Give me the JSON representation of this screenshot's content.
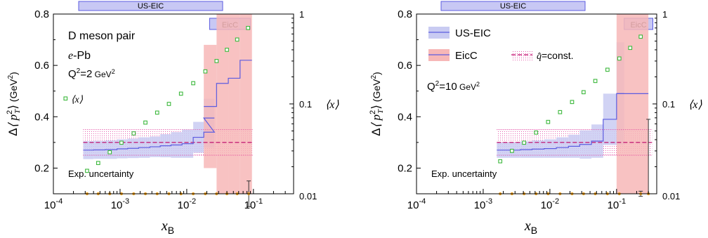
{
  "figure": {
    "xlabel_main": "x",
    "xlabel_sub": "B",
    "ylabel_pre": "Δ",
    "ylabel_var": "⟨ p",
    "ylabel_sup": "2",
    "ylabel_sub": "T",
    "ylabel_post": "⟩",
    "ylabel_unit": "(GeV",
    "ylabel_unit_sup": "2",
    "ylabel_unit_close": ")",
    "right_axis_label": "⟨x⟩"
  },
  "chart_data": [
    {
      "type": "line",
      "panel": "left",
      "x_scale": "log",
      "xlim": [
        0.0001,
        0.4
      ],
      "ylim": [
        0.1,
        0.8
      ],
      "right_axis": {
        "scale": "log",
        "range": [
          0.01,
          1
        ],
        "ticks": [
          "0.01",
          "0.1",
          "1"
        ]
      },
      "y_ticks": [
        "0.2",
        "0.4",
        "0.6",
        "0.8"
      ],
      "x_ticks": [
        {
          "base": "10",
          "exp": "-4"
        },
        {
          "base": "10",
          "exp": "-3"
        },
        {
          "base": "10",
          "exp": "-2"
        },
        {
          "base": "10",
          "exp": "-1"
        }
      ],
      "top_bars": [
        {
          "label": "US-EIC",
          "xrange": [
            0.0001,
            0.03
          ]
        },
        {
          "label": "EicC",
          "xrange": [
            0.022,
            0.09
          ]
        }
      ],
      "annotations": {
        "line1": "D meson pair",
        "line2_var": "e",
        "line2_rest": "-Pb",
        "q2_main": "Q",
        "q2_sup": "2",
        "q2_val": "=2",
        "q2_unit": "GeV",
        "q2_unit_sup": "2",
        "x_legend": "⟨x⟩",
        "exp_uncertainty": "Exp. uncertainty"
      },
      "qhat_const": {
        "value": 0.3,
        "band": [
          0.25,
          0.35
        ],
        "xrange": [
          0.00028,
          0.1
        ]
      },
      "us_eic_edges": [
        0.00028,
        0.0004,
        0.0006,
        0.0009,
        0.0013,
        0.0019,
        0.0028,
        0.004,
        0.0058,
        0.0085,
        0.0125,
        0.018,
        0.026
      ],
      "us_eic_values": [
        0.27,
        0.271,
        0.272,
        0.275,
        0.277,
        0.28,
        0.283,
        0.287,
        0.29,
        0.295,
        0.32,
        0.34
      ],
      "us_eic_err": [
        0.035,
        0.035,
        0.036,
        0.037,
        0.038,
        0.04,
        0.04,
        0.045,
        0.05,
        0.055,
        0.06,
        0.06
      ],
      "us_eic_last": {
        "edges": [
          0.018,
          0.026
        ],
        "value": 0.395,
        "err": 0.075
      },
      "eicc_edges": [
        0.018,
        0.028,
        0.042,
        0.063,
        0.095
      ],
      "eicc_values": [
        0.44,
        0.53,
        0.55,
        0.62
      ],
      "eicc_err": [
        0.24,
        0.5,
        0.55,
        0.55
      ],
      "x_points": [
        {
          "x": 0.00032,
          "xavg": 0.018
        },
        {
          "x": 0.00047,
          "xavg": 0.022
        },
        {
          "x": 0.0007,
          "xavg": 0.029
        },
        {
          "x": 0.00105,
          "xavg": 0.037
        },
        {
          "x": 0.0016,
          "xavg": 0.047
        },
        {
          "x": 0.0024,
          "xavg": 0.062
        },
        {
          "x": 0.0036,
          "xavg": 0.08
        },
        {
          "x": 0.0054,
          "xavg": 0.1
        },
        {
          "x": 0.0082,
          "xavg": 0.13
        },
        {
          "x": 0.0125,
          "xavg": 0.17
        },
        {
          "x": 0.019,
          "xavg": 0.23
        },
        {
          "x": 0.028,
          "xavg": 0.3
        },
        {
          "x": 0.04,
          "xavg": 0.4
        },
        {
          "x": 0.057,
          "xavg": 0.52
        },
        {
          "x": 0.083,
          "xavg": 0.7
        }
      ],
      "exp_points": [
        0.00032,
        0.00047,
        0.0007,
        0.00105,
        0.0016,
        0.0024,
        0.0036,
        0.0054,
        0.0082,
        0.0125,
        0.019,
        0.028,
        0.04,
        0.057
      ],
      "exp_y": 0.1,
      "exp_bar": {
        "x": 0.085,
        "y": 0.1,
        "low": 0.05,
        "high": 0.15
      }
    },
    {
      "type": "line",
      "panel": "right",
      "x_scale": "log",
      "xlim": [
        0.0001,
        0.4
      ],
      "ylim": [
        0.1,
        0.8
      ],
      "right_axis": {
        "scale": "log",
        "range": [
          0.01,
          1
        ],
        "ticks": [
          "0.01",
          "0.1",
          "1"
        ]
      },
      "y_ticks": [
        "0.2",
        "0.4",
        "0.6",
        "0.8"
      ],
      "x_ticks": [
        {
          "base": "10",
          "exp": "-4"
        },
        {
          "base": "10",
          "exp": "-3"
        },
        {
          "base": "10",
          "exp": "-2"
        },
        {
          "base": "10",
          "exp": "-1"
        }
      ],
      "top_bars": [
        {
          "label": "US-EIC",
          "xrange": [
            0.0001,
            0.35
          ]
        },
        {
          "label": "EicC",
          "xrange": [
            0.13,
            0.35
          ]
        }
      ],
      "annotations": {
        "q2_main": "Q",
        "q2_sup": "2",
        "q2_val": "=10",
        "q2_unit": "GeV",
        "q2_unit_sup": "2",
        "x_legend": "⟨x⟩",
        "exp_uncertainty": "Exp. uncertainty"
      },
      "legend": {
        "us_eic": "US-EIC",
        "eicc": "EicC",
        "qhat_var": "q̂",
        "qhat_rest": "=const."
      },
      "qhat_const": {
        "value": 0.3,
        "band": [
          0.25,
          0.35
        ],
        "xrange": [
          0.0016,
          0.34
        ]
      },
      "us_eic_edges": [
        0.0016,
        0.0024,
        0.0036,
        0.0054,
        0.0082,
        0.0125,
        0.019,
        0.028,
        0.042,
        0.063
      ],
      "us_eic_values": [
        0.27,
        0.27,
        0.272,
        0.274,
        0.276,
        0.28,
        0.285,
        0.292,
        0.305
      ],
      "us_eic_err": [
        0.03,
        0.03,
        0.032,
        0.034,
        0.036,
        0.04,
        0.045,
        0.055,
        0.065
      ],
      "us_eic_upper": {
        "edges": [
          0.063,
          0.1
        ],
        "value": 0.39,
        "err": 0.1
      },
      "us_eic_upper2": {
        "edges": [
          0.1,
          0.13
        ],
        "value": 0.49,
        "err": 0.2
      },
      "eicc_edges": [
        0.1,
        0.3
      ],
      "eicc_values": [
        0.49
      ],
      "eicc_err": [
        0.45
      ],
      "x_points": [
        {
          "x": 0.0018,
          "xavg": 0.023
        },
        {
          "x": 0.0027,
          "xavg": 0.03
        },
        {
          "x": 0.0041,
          "xavg": 0.037
        },
        {
          "x": 0.0062,
          "xavg": 0.048
        },
        {
          "x": 0.0094,
          "xavg": 0.063
        },
        {
          "x": 0.0142,
          "xavg": 0.081
        },
        {
          "x": 0.0215,
          "xavg": 0.105
        },
        {
          "x": 0.032,
          "xavg": 0.135
        },
        {
          "x": 0.048,
          "xavg": 0.18
        },
        {
          "x": 0.073,
          "xavg": 0.24
        },
        {
          "x": 0.11,
          "xavg": 0.32
        },
        {
          "x": 0.16,
          "xavg": 0.42
        },
        {
          "x": 0.23,
          "xavg": 0.56
        }
      ],
      "exp_points": [
        0.0018,
        0.0027,
        0.0041,
        0.0062,
        0.0094,
        0.0142,
        0.0215,
        0.032,
        0.048,
        0.073,
        0.11,
        0.3
      ],
      "exp_y": 0.1,
      "exp_bar": {
        "x": 0.23,
        "y": 0.1,
        "low": 0.09,
        "high": 0.11
      },
      "side_bar": {
        "x": 0.3,
        "low": 0.1,
        "high": 0.39
      }
    }
  ]
}
